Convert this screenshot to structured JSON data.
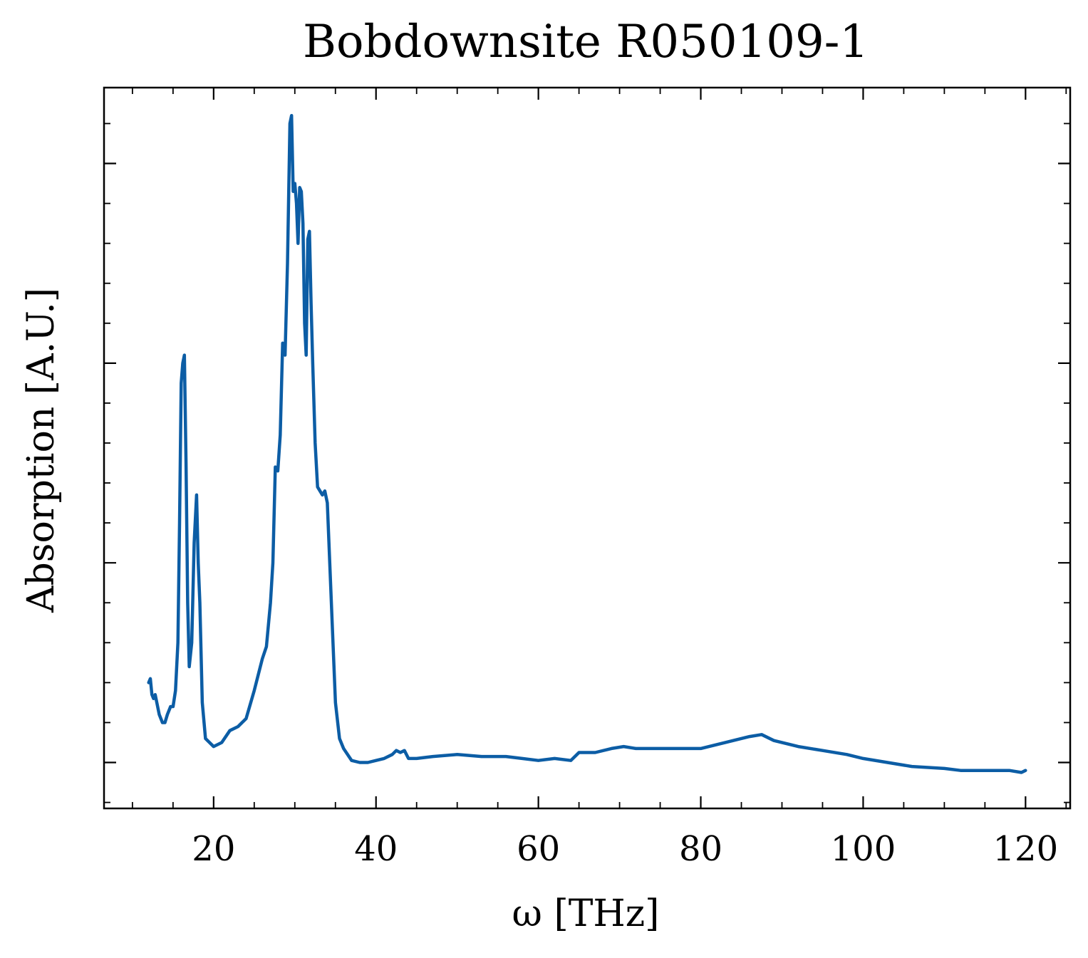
{
  "chart_data": {
    "type": "line",
    "title": "Bobdownsite R050109-1",
    "xlabel": "ω [THz]",
    "ylabel": "Absorption [A.U.]",
    "xlim": [
      6.5,
      125.5
    ],
    "ylim": [
      -0.115,
      1.69
    ],
    "x_ticks": [
      20,
      40,
      60,
      80,
      100,
      120
    ],
    "x_tick_labels": [
      "20",
      "40",
      "60",
      "80",
      "100",
      "120"
    ],
    "y_ticks": [
      0,
      0.5,
      1.0,
      1.5
    ],
    "y_tick_labels": [
      "",
      "",
      "",
      ""
    ],
    "grid": false,
    "legend": "none",
    "line_color": "#0C5DA5",
    "series": [
      {
        "x": [
          12.0,
          12.2,
          12.4,
          12.6,
          12.8,
          13.0,
          13.3,
          13.7,
          14.0,
          14.3,
          14.7,
          15.0,
          15.3,
          15.6,
          15.8,
          16.0,
          16.2,
          16.4,
          16.6,
          16.8,
          17.0,
          17.3,
          17.6,
          17.9,
          18.1,
          18.3,
          18.6,
          19.0,
          19.5,
          20.0,
          21.0,
          22.0,
          23.0,
          24.0,
          25.0,
          25.5,
          26.0,
          26.5,
          27.0,
          27.3,
          27.6,
          27.9,
          28.2,
          28.5,
          28.8,
          29.1,
          29.4,
          29.6,
          29.8,
          30.0,
          30.2,
          30.4,
          30.6,
          30.8,
          31.0,
          31.2,
          31.4,
          31.6,
          31.8,
          32.0,
          32.2,
          32.5,
          32.8,
          33.1,
          33.4,
          33.7,
          34.0,
          34.3,
          34.6,
          35.0,
          35.5,
          36.0,
          37.0,
          38.0,
          39.0,
          40.0,
          41.0,
          42.0,
          42.5,
          43.0,
          43.5,
          44.0,
          45.0,
          47.0,
          50.0,
          53.0,
          56.0,
          58.0,
          60.0,
          62.0,
          64.0,
          65.0,
          67.0,
          69.0,
          70.5,
          72.0,
          75.0,
          78.0,
          80.0,
          82.0,
          84.0,
          86.0,
          87.5,
          89.0,
          92.0,
          95.0,
          98.0,
          100.0,
          103.0,
          106.0,
          110.0,
          112.0,
          114.0,
          116.0,
          118.0,
          119.5,
          120.0
        ],
        "y": [
          0.2,
          0.21,
          0.17,
          0.16,
          0.17,
          0.15,
          0.12,
          0.1,
          0.1,
          0.12,
          0.14,
          0.14,
          0.18,
          0.3,
          0.6,
          0.95,
          1.0,
          1.02,
          0.75,
          0.4,
          0.24,
          0.3,
          0.55,
          0.67,
          0.5,
          0.4,
          0.15,
          0.06,
          0.05,
          0.04,
          0.05,
          0.08,
          0.09,
          0.11,
          0.18,
          0.22,
          0.26,
          0.29,
          0.4,
          0.5,
          0.74,
          0.73,
          0.82,
          1.05,
          1.02,
          1.25,
          1.6,
          1.62,
          1.43,
          1.45,
          1.4,
          1.3,
          1.44,
          1.43,
          1.35,
          1.1,
          1.02,
          1.31,
          1.33,
          1.15,
          1.0,
          0.8,
          0.69,
          0.68,
          0.67,
          0.68,
          0.65,
          0.5,
          0.35,
          0.15,
          0.06,
          0.035,
          0.005,
          0.0,
          0.0,
          0.005,
          0.01,
          0.02,
          0.03,
          0.025,
          0.03,
          0.01,
          0.01,
          0.015,
          0.02,
          0.015,
          0.015,
          0.01,
          0.005,
          0.01,
          0.005,
          0.025,
          0.025,
          0.035,
          0.04,
          0.035,
          0.035,
          0.035,
          0.035,
          0.045,
          0.055,
          0.065,
          0.07,
          0.055,
          0.04,
          0.03,
          0.02,
          0.01,
          0.0,
          -0.01,
          -0.015,
          -0.02,
          -0.02,
          -0.02,
          -0.02,
          -0.025,
          -0.02
        ]
      }
    ]
  }
}
